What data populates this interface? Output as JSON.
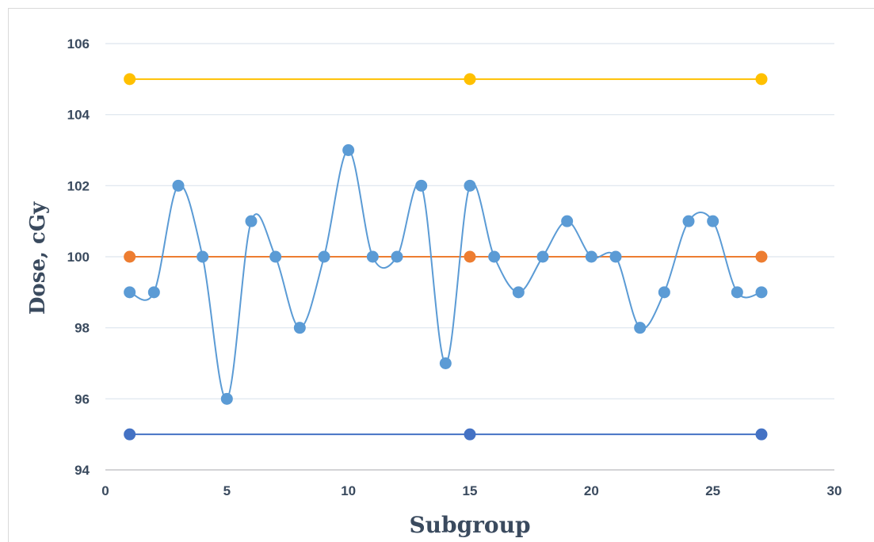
{
  "chart_data": {
    "type": "scatter",
    "title": "",
    "xlabel": "Subgroup",
    "ylabel": "Dose, cGy",
    "xlim": [
      0,
      30
    ],
    "ylim": [
      94,
      106
    ],
    "xticks": [
      0,
      5,
      10,
      15,
      20,
      25,
      30
    ],
    "yticks": [
      94,
      96,
      98,
      100,
      102,
      104,
      106
    ],
    "grid": "horizontal",
    "legend": "none",
    "series": [
      {
        "role": "measurements",
        "color": "#5b9bd5",
        "line": "smooth",
        "x": [
          1,
          2,
          3,
          4,
          5,
          6,
          7,
          8,
          9,
          10,
          11,
          12,
          13,
          14,
          15,
          16,
          17,
          18,
          19,
          20,
          21,
          22,
          23,
          24,
          25,
          26,
          27
        ],
        "y": [
          99,
          99,
          102,
          100,
          96,
          101,
          100,
          98,
          100,
          103,
          100,
          100,
          102,
          97,
          102,
          100,
          99,
          100,
          101,
          100,
          100,
          98,
          99,
          101,
          101,
          99,
          99
        ]
      },
      {
        "role": "upper-limit",
        "color": "#ffc000",
        "line": "straight",
        "x": [
          1,
          15,
          27
        ],
        "y": [
          105,
          105,
          105
        ]
      },
      {
        "role": "center-line",
        "color": "#ed7d31",
        "line": "straight",
        "x": [
          1,
          15,
          27
        ],
        "y": [
          100,
          100,
          100
        ]
      },
      {
        "role": "lower-limit",
        "color": "#4472c4",
        "line": "straight",
        "x": [
          1,
          15,
          27
        ],
        "y": [
          95,
          95,
          95
        ]
      }
    ]
  }
}
